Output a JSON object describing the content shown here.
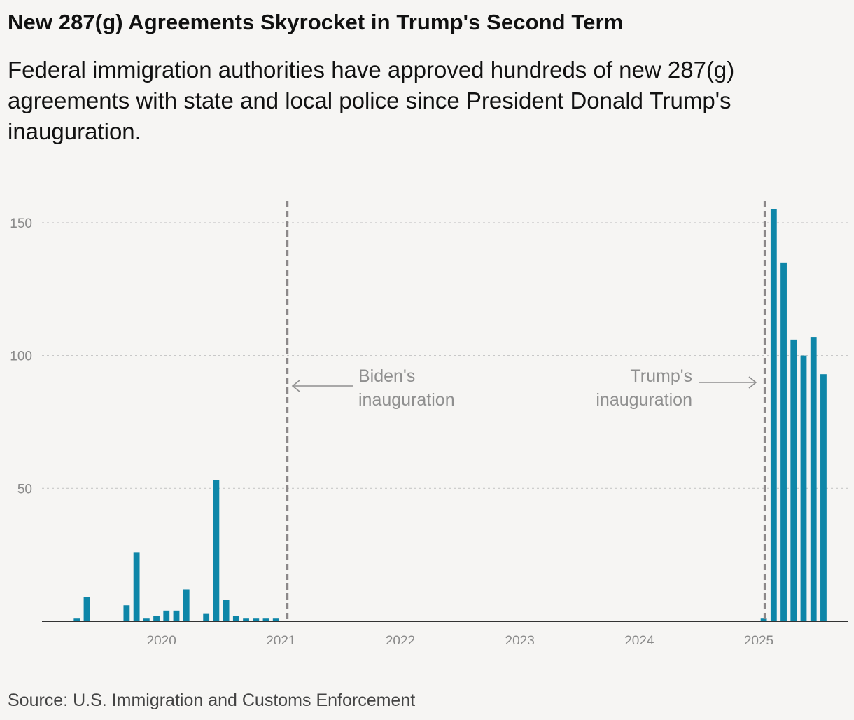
{
  "title": "New 287(g) Agreements Skyrocket in Trump's Second Term",
  "subtitle": "Federal immigration authorities have approved hundreds of new 287(g) agreements with state and local police since President Donald Trump's inauguration.",
  "source": "Source: U.S. Immigration and Customs Enforcement",
  "colors": {
    "bar": "#0e86a8",
    "marker": "#8c8889",
    "grid": "#c8c8c8",
    "axis": "#333333",
    "annotation": "#8f8f8f"
  },
  "chart_data": {
    "type": "bar",
    "xlabel": "",
    "ylabel": "",
    "ylim": [
      0,
      160
    ],
    "yticks": [
      50,
      100,
      150
    ],
    "xticks": [
      "2020",
      "2021",
      "2022",
      "2023",
      "2024",
      "2025"
    ],
    "grid": true,
    "categories": [
      "2019-04",
      "2019-05",
      "2019-06",
      "2019-07",
      "2019-08",
      "2019-09",
      "2019-10",
      "2019-11",
      "2019-12",
      "2020-01",
      "2020-02",
      "2020-03",
      "2020-04",
      "2020-05",
      "2020-06",
      "2020-07",
      "2020-08",
      "2020-09",
      "2020-10",
      "2020-11",
      "2020-12",
      "2025-01",
      "2025-02",
      "2025-03",
      "2025-04",
      "2025-05",
      "2025-06",
      "2025-07"
    ],
    "values": [
      1,
      9,
      0,
      0,
      0,
      6,
      26,
      1,
      2,
      4,
      4,
      12,
      0,
      3,
      53,
      8,
      2,
      1,
      1,
      1,
      1,
      1,
      155,
      135,
      106,
      100,
      107,
      93
    ],
    "annotations": [
      {
        "label_line1": "Biden's",
        "label_line2": "inauguration",
        "date": "2021-01-20",
        "arrow": "left"
      },
      {
        "label_line1": "Trump's",
        "label_line2": "inauguration",
        "date": "2025-01-20",
        "arrow": "right"
      }
    ]
  }
}
